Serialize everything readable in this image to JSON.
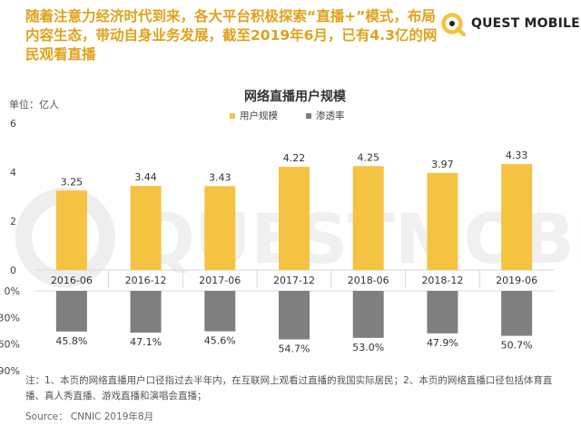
{
  "header": {
    "headline": "随着注意力经济时代到来，各大平台积极探索“直播+”模式，布局内容生态，带动自身业务发展，截至2019年6月，已有4.3亿的网民观看直播",
    "logo_text": "QUEST MOBILE",
    "logo_icon": "quest-mobile-logo-icon",
    "watermark_text": "QUESTMOBILE"
  },
  "chart_data": {
    "type": "bar",
    "title": "网络直播用户规模",
    "unit_label": "单位：亿人",
    "categories": [
      "2016-06",
      "2016-12",
      "2017-06",
      "2017-12",
      "2018-06",
      "2018-12",
      "2019-06"
    ],
    "series": [
      {
        "name": "用户规模",
        "values": [
          3.25,
          3.44,
          3.43,
          4.22,
          4.25,
          3.97,
          4.33
        ],
        "labels": [
          "3.25",
          "3.44",
          "3.43",
          "4.22",
          "4.25",
          "3.97",
          "4.33"
        ],
        "color": "#f5c342"
      },
      {
        "name": "渗透率",
        "values": [
          45.8,
          47.1,
          45.6,
          54.7,
          53.0,
          47.9,
          50.7
        ],
        "labels": [
          "45.8%",
          "47.1%",
          "45.6%",
          "54.7%",
          "53.0%",
          "47.9%",
          "50.7%"
        ],
        "color": "#7f7f7f"
      }
    ],
    "ylim": [
      0,
      6
    ],
    "yticks": [
      "0",
      "2",
      "4",
      "6"
    ],
    "ylim_lower": [
      0,
      90
    ],
    "yticks_lower": [
      "0%",
      "30%",
      "60%",
      "90%"
    ],
    "legend_position": "top-center",
    "grid": false
  },
  "footer": {
    "note": "注：1、本页的网络直播用户口径指过去半年内，在互联网上观看过直播的我国实际居民；2、本页的网络直播口径包括体育直播、真人秀直播、游戏直播和演唱会直播；",
    "source": "Source： CNNIC 2019年8月"
  },
  "colors": {
    "headline": "#e0a21a",
    "bar_primary": "#f5c342",
    "bar_secondary": "#7f7f7f",
    "axis": "#d9d9d9"
  }
}
